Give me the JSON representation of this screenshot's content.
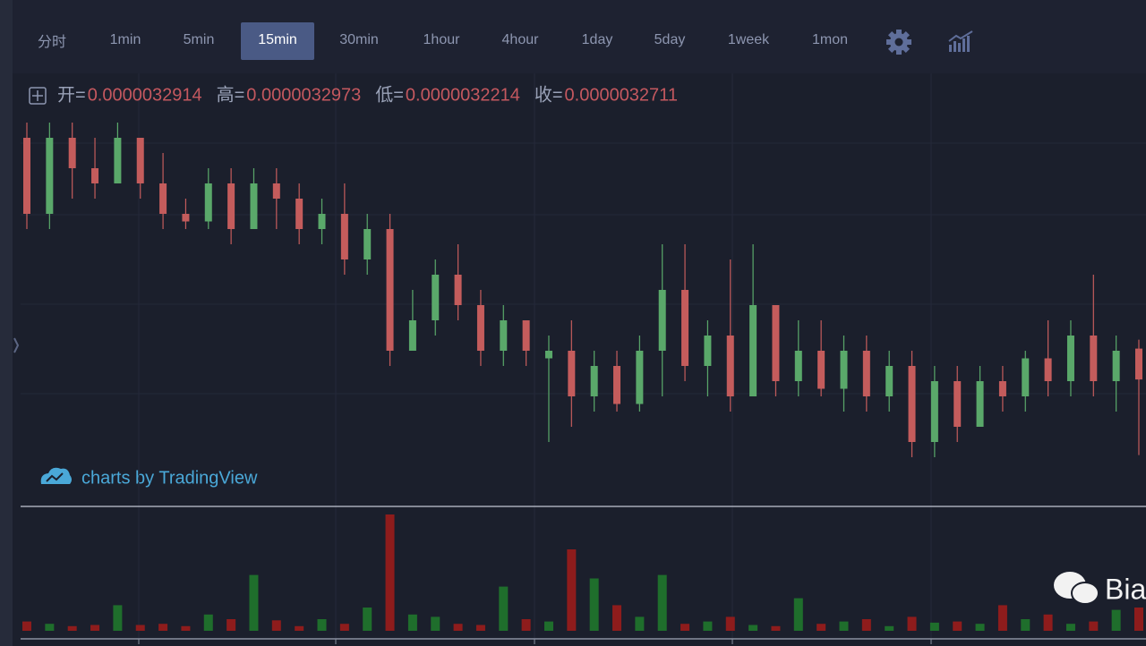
{
  "toolbar": {
    "intervals": [
      "分时",
      "1min",
      "5min",
      "15min",
      "30min",
      "1hour",
      "4hour",
      "1day",
      "5day",
      "1week",
      "1mon"
    ],
    "active": 3
  },
  "legend": {
    "items": [
      {
        "label": "开=",
        "value": "0.0000032914"
      },
      {
        "label": "高=",
        "value": "0.0000032973"
      },
      {
        "label": "低=",
        "value": "0.0000032214"
      },
      {
        "label": "收=",
        "value": "0.0000032711"
      }
    ]
  },
  "chart_data": {
    "type": "candlestick",
    "ylim": [
      3.2e-06,
      3.45e-06
    ],
    "up_color": "#5aa86a",
    "down_color": "#c45c5c",
    "open": [
      3.43e-06,
      3.38e-06,
      3.43e-06,
      3.41e-06,
      3.4e-06,
      3.43e-06,
      3.4e-06,
      3.38e-06,
      3.375e-06,
      3.4e-06,
      3.37e-06,
      3.4e-06,
      3.39e-06,
      3.37e-06,
      3.38e-06,
      3.35e-06,
      3.37e-06,
      3.29e-06,
      3.31e-06,
      3.34e-06,
      3.32e-06,
      3.29e-06,
      3.31e-06,
      3.285e-06,
      3.29e-06,
      3.26e-06,
      3.28e-06,
      3.255e-06,
      3.29e-06,
      3.33e-06,
      3.28e-06,
      3.3e-06,
      3.26e-06,
      3.32e-06,
      3.27e-06,
      3.29e-06,
      3.265e-06,
      3.29e-06,
      3.26e-06,
      3.28e-06,
      3.23e-06,
      3.27e-06,
      3.24e-06,
      3.27e-06,
      3.26e-06,
      3.285e-06,
      3.27e-06,
      3.3e-06,
      3.27e-06,
      3.2914e-06
    ],
    "high": [
      3.44e-06,
      3.44e-06,
      3.44e-06,
      3.43e-06,
      3.44e-06,
      3.43e-06,
      3.42e-06,
      3.39e-06,
      3.41e-06,
      3.41e-06,
      3.41e-06,
      3.41e-06,
      3.4e-06,
      3.39e-06,
      3.4e-06,
      3.38e-06,
      3.38e-06,
      3.33e-06,
      3.35e-06,
      3.36e-06,
      3.33e-06,
      3.32e-06,
      3.31e-06,
      3.3e-06,
      3.31e-06,
      3.29e-06,
      3.29e-06,
      3.3e-06,
      3.36e-06,
      3.36e-06,
      3.31e-06,
      3.35e-06,
      3.36e-06,
      3.32e-06,
      3.31e-06,
      3.31e-06,
      3.3e-06,
      3.3e-06,
      3.29e-06,
      3.29e-06,
      3.28e-06,
      3.28e-06,
      3.28e-06,
      3.28e-06,
      3.29e-06,
      3.31e-06,
      3.31e-06,
      3.34e-06,
      3.3e-06,
      3.2973e-06
    ],
    "low": [
      3.37e-06,
      3.37e-06,
      3.39e-06,
      3.39e-06,
      3.4e-06,
      3.39e-06,
      3.37e-06,
      3.37e-06,
      3.37e-06,
      3.36e-06,
      3.37e-06,
      3.37e-06,
      3.36e-06,
      3.36e-06,
      3.34e-06,
      3.34e-06,
      3.28e-06,
      3.29e-06,
      3.3e-06,
      3.31e-06,
      3.28e-06,
      3.28e-06,
      3.28e-06,
      3.23e-06,
      3.24e-06,
      3.25e-06,
      3.25e-06,
      3.25e-06,
      3.26e-06,
      3.27e-06,
      3.26e-06,
      3.25e-06,
      3.26e-06,
      3.26e-06,
      3.26e-06,
      3.26e-06,
      3.25e-06,
      3.25e-06,
      3.25e-06,
      3.22e-06,
      3.22e-06,
      3.23e-06,
      3.24e-06,
      3.25e-06,
      3.25e-06,
      3.26e-06,
      3.26e-06,
      3.26e-06,
      3.25e-06,
      3.2214e-06
    ],
    "close": [
      3.38e-06,
      3.43e-06,
      3.41e-06,
      3.4e-06,
      3.43e-06,
      3.4e-06,
      3.38e-06,
      3.375e-06,
      3.4e-06,
      3.37e-06,
      3.4e-06,
      3.39e-06,
      3.37e-06,
      3.38e-06,
      3.35e-06,
      3.37e-06,
      3.29e-06,
      3.31e-06,
      3.34e-06,
      3.32e-06,
      3.29e-06,
      3.31e-06,
      3.29e-06,
      3.29e-06,
      3.26e-06,
      3.28e-06,
      3.255e-06,
      3.29e-06,
      3.33e-06,
      3.28e-06,
      3.3e-06,
      3.26e-06,
      3.32e-06,
      3.27e-06,
      3.29e-06,
      3.265e-06,
      3.29e-06,
      3.26e-06,
      3.28e-06,
      3.23e-06,
      3.27e-06,
      3.24e-06,
      3.27e-06,
      3.26e-06,
      3.285e-06,
      3.27e-06,
      3.3e-06,
      3.27e-06,
      3.29e-06,
      3.2711e-06
    ],
    "volume": {
      "ylim": [
        0,
        100
      ],
      "up_color": "#1f6e2c",
      "down_color": "#8e1c1c",
      "values": [
        8,
        6,
        4,
        5,
        22,
        5,
        6,
        4,
        14,
        10,
        48,
        9,
        4,
        10,
        6,
        20,
        100,
        14,
        12,
        6,
        5,
        38,
        10,
        8,
        70,
        45,
        22,
        12,
        48,
        6,
        8,
        12,
        5,
        4,
        28,
        6,
        8,
        10,
        4,
        12,
        7,
        8,
        6,
        22,
        10,
        14,
        6,
        8,
        18,
        20
      ]
    }
  },
  "watermarks": {
    "tradingview": "charts by TradingView",
    "wechat": "Bia"
  }
}
